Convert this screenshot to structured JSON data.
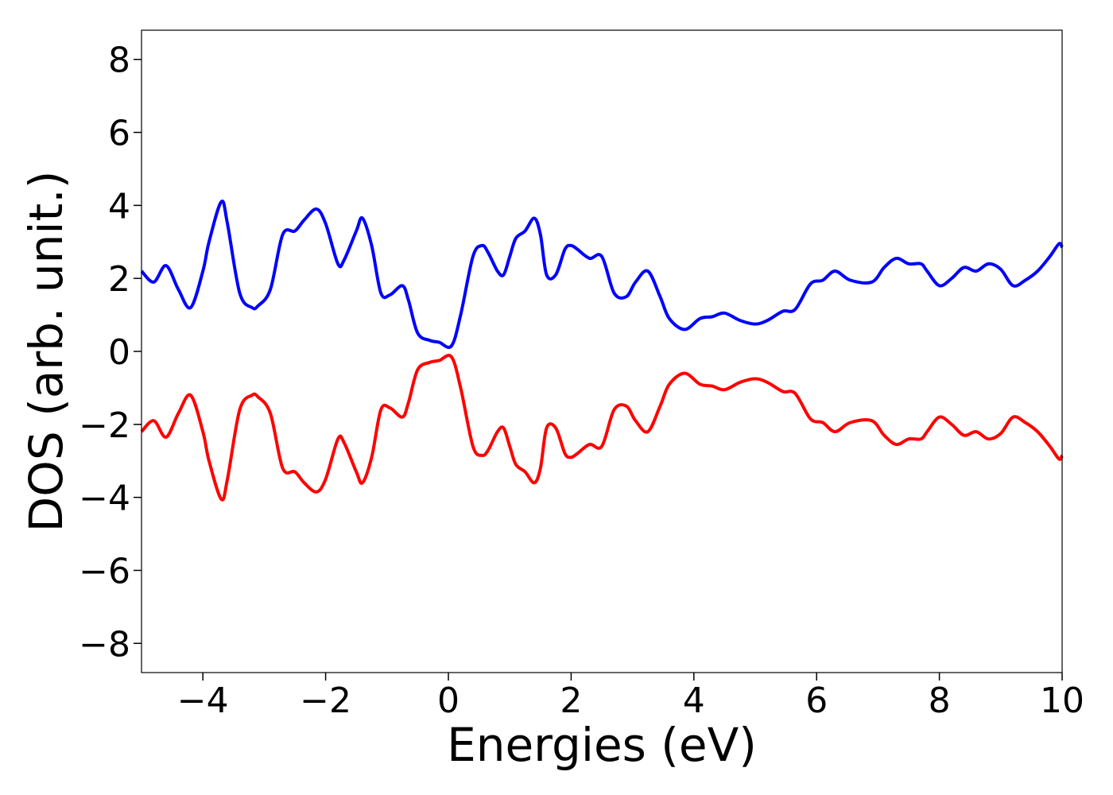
{
  "chart_data": {
    "type": "line",
    "title": "",
    "xlabel": "Energies (eV)",
    "ylabel": "DOS (arb. unit.)",
    "xlim": [
      -5,
      10
    ],
    "ylim": [
      -8.8,
      8.8
    ],
    "xticks": [
      {
        "value": -4,
        "label": "−4"
      },
      {
        "value": -2,
        "label": "−2"
      },
      {
        "value": 0,
        "label": "0"
      },
      {
        "value": 2,
        "label": "2"
      },
      {
        "value": 4,
        "label": "4"
      },
      {
        "value": 6,
        "label": "6"
      },
      {
        "value": 8,
        "label": "8"
      },
      {
        "value": 10,
        "label": "10"
      }
    ],
    "yticks": [
      {
        "value": 8,
        "label": "8"
      },
      {
        "value": 6,
        "label": "6"
      },
      {
        "value": 4,
        "label": "4"
      },
      {
        "value": 2,
        "label": "2"
      },
      {
        "value": 0,
        "label": "0"
      },
      {
        "value": -2,
        "label": "−2"
      },
      {
        "value": -4,
        "label": "−4"
      },
      {
        "value": -6,
        "label": "−6"
      },
      {
        "value": -8,
        "label": "−8"
      }
    ],
    "grid": false,
    "legend": "none",
    "series": [
      {
        "color": "#0000ff",
        "x": [
          -5.0,
          -4.8,
          -4.6,
          -4.4,
          -4.2,
          -4.0,
          -3.9,
          -3.7,
          -3.6,
          -3.4,
          -3.2,
          -3.1,
          -2.9,
          -2.7,
          -2.5,
          -2.35,
          -2.15,
          -2.0,
          -1.8,
          -1.7,
          -1.5,
          -1.4,
          -1.25,
          -1.1,
          -0.95,
          -0.75,
          -0.65,
          -0.5,
          -0.3,
          -0.15,
          0.05,
          0.2,
          0.4,
          0.55,
          0.65,
          0.8,
          0.9,
          1.0,
          1.1,
          1.25,
          1.4,
          1.5,
          1.6,
          1.75,
          1.9,
          2.0,
          2.1,
          2.3,
          2.5,
          2.7,
          2.9,
          3.05,
          3.25,
          3.45,
          3.6,
          3.85,
          4.1,
          4.3,
          4.5,
          4.75,
          5.0,
          5.2,
          5.45,
          5.65,
          5.9,
          6.1,
          6.3,
          6.55,
          6.9,
          7.1,
          7.3,
          7.5,
          7.7,
          7.8,
          8.0,
          8.2,
          8.4,
          8.6,
          8.8,
          9.0,
          9.2,
          9.4,
          9.6,
          9.8,
          9.95,
          10.0
        ],
        "y": [
          2.2,
          1.9,
          2.35,
          1.7,
          1.2,
          2.2,
          3.0,
          4.1,
          3.5,
          1.6,
          1.2,
          1.25,
          1.7,
          3.2,
          3.3,
          3.6,
          3.9,
          3.5,
          2.4,
          2.5,
          3.3,
          3.65,
          2.9,
          1.6,
          1.55,
          1.8,
          1.4,
          0.5,
          0.3,
          0.25,
          0.15,
          1.0,
          2.6,
          2.9,
          2.7,
          2.2,
          2.1,
          2.6,
          3.1,
          3.3,
          3.65,
          3.2,
          2.1,
          2.1,
          2.8,
          2.9,
          2.8,
          2.55,
          2.6,
          1.6,
          1.5,
          1.9,
          2.2,
          1.5,
          0.9,
          0.6,
          0.9,
          0.95,
          1.05,
          0.85,
          0.75,
          0.85,
          1.1,
          1.15,
          1.85,
          1.95,
          2.2,
          1.95,
          1.9,
          2.3,
          2.55,
          2.4,
          2.4,
          2.2,
          1.8,
          2.0,
          2.3,
          2.2,
          2.4,
          2.25,
          1.8,
          1.95,
          2.2,
          2.6,
          2.95,
          2.85
        ]
      },
      {
        "color": "#ff0000",
        "x": [
          -5.0,
          -4.8,
          -4.6,
          -4.4,
          -4.2,
          -4.0,
          -3.9,
          -3.7,
          -3.6,
          -3.4,
          -3.2,
          -3.1,
          -2.9,
          -2.7,
          -2.5,
          -2.35,
          -2.15,
          -2.0,
          -1.8,
          -1.7,
          -1.5,
          -1.4,
          -1.25,
          -1.1,
          -0.95,
          -0.75,
          -0.65,
          -0.5,
          -0.3,
          -0.15,
          0.05,
          0.2,
          0.4,
          0.55,
          0.65,
          0.8,
          0.9,
          1.0,
          1.1,
          1.25,
          1.4,
          1.5,
          1.6,
          1.75,
          1.9,
          2.0,
          2.1,
          2.3,
          2.5,
          2.7,
          2.9,
          3.05,
          3.25,
          3.45,
          3.6,
          3.85,
          4.1,
          4.3,
          4.5,
          4.75,
          5.0,
          5.2,
          5.45,
          5.65,
          5.9,
          6.1,
          6.3,
          6.55,
          6.9,
          7.1,
          7.3,
          7.5,
          7.7,
          7.8,
          8.0,
          8.2,
          8.4,
          8.6,
          8.8,
          9.0,
          9.2,
          9.4,
          9.6,
          9.8,
          9.95,
          10.0
        ],
        "y": [
          -2.2,
          -1.9,
          -2.35,
          -1.7,
          -1.2,
          -2.2,
          -3.0,
          -4.05,
          -3.5,
          -1.6,
          -1.2,
          -1.25,
          -1.7,
          -3.2,
          -3.3,
          -3.6,
          -3.85,
          -3.5,
          -2.4,
          -2.5,
          -3.3,
          -3.6,
          -2.9,
          -1.6,
          -1.55,
          -1.8,
          -1.4,
          -0.5,
          -0.3,
          -0.25,
          -0.15,
          -1.0,
          -2.6,
          -2.85,
          -2.7,
          -2.2,
          -2.1,
          -2.6,
          -3.1,
          -3.3,
          -3.6,
          -3.2,
          -2.1,
          -2.1,
          -2.8,
          -2.9,
          -2.8,
          -2.55,
          -2.6,
          -1.6,
          -1.5,
          -1.9,
          -2.2,
          -1.5,
          -0.9,
          -0.6,
          -0.9,
          -0.95,
          -1.05,
          -0.85,
          -0.75,
          -0.85,
          -1.1,
          -1.15,
          -1.85,
          -1.95,
          -2.2,
          -1.95,
          -1.9,
          -2.3,
          -2.55,
          -2.4,
          -2.4,
          -2.2,
          -1.8,
          -2.0,
          -2.3,
          -2.2,
          -2.4,
          -2.25,
          -1.8,
          -1.95,
          -2.2,
          -2.6,
          -2.95,
          -2.85
        ]
      }
    ]
  }
}
